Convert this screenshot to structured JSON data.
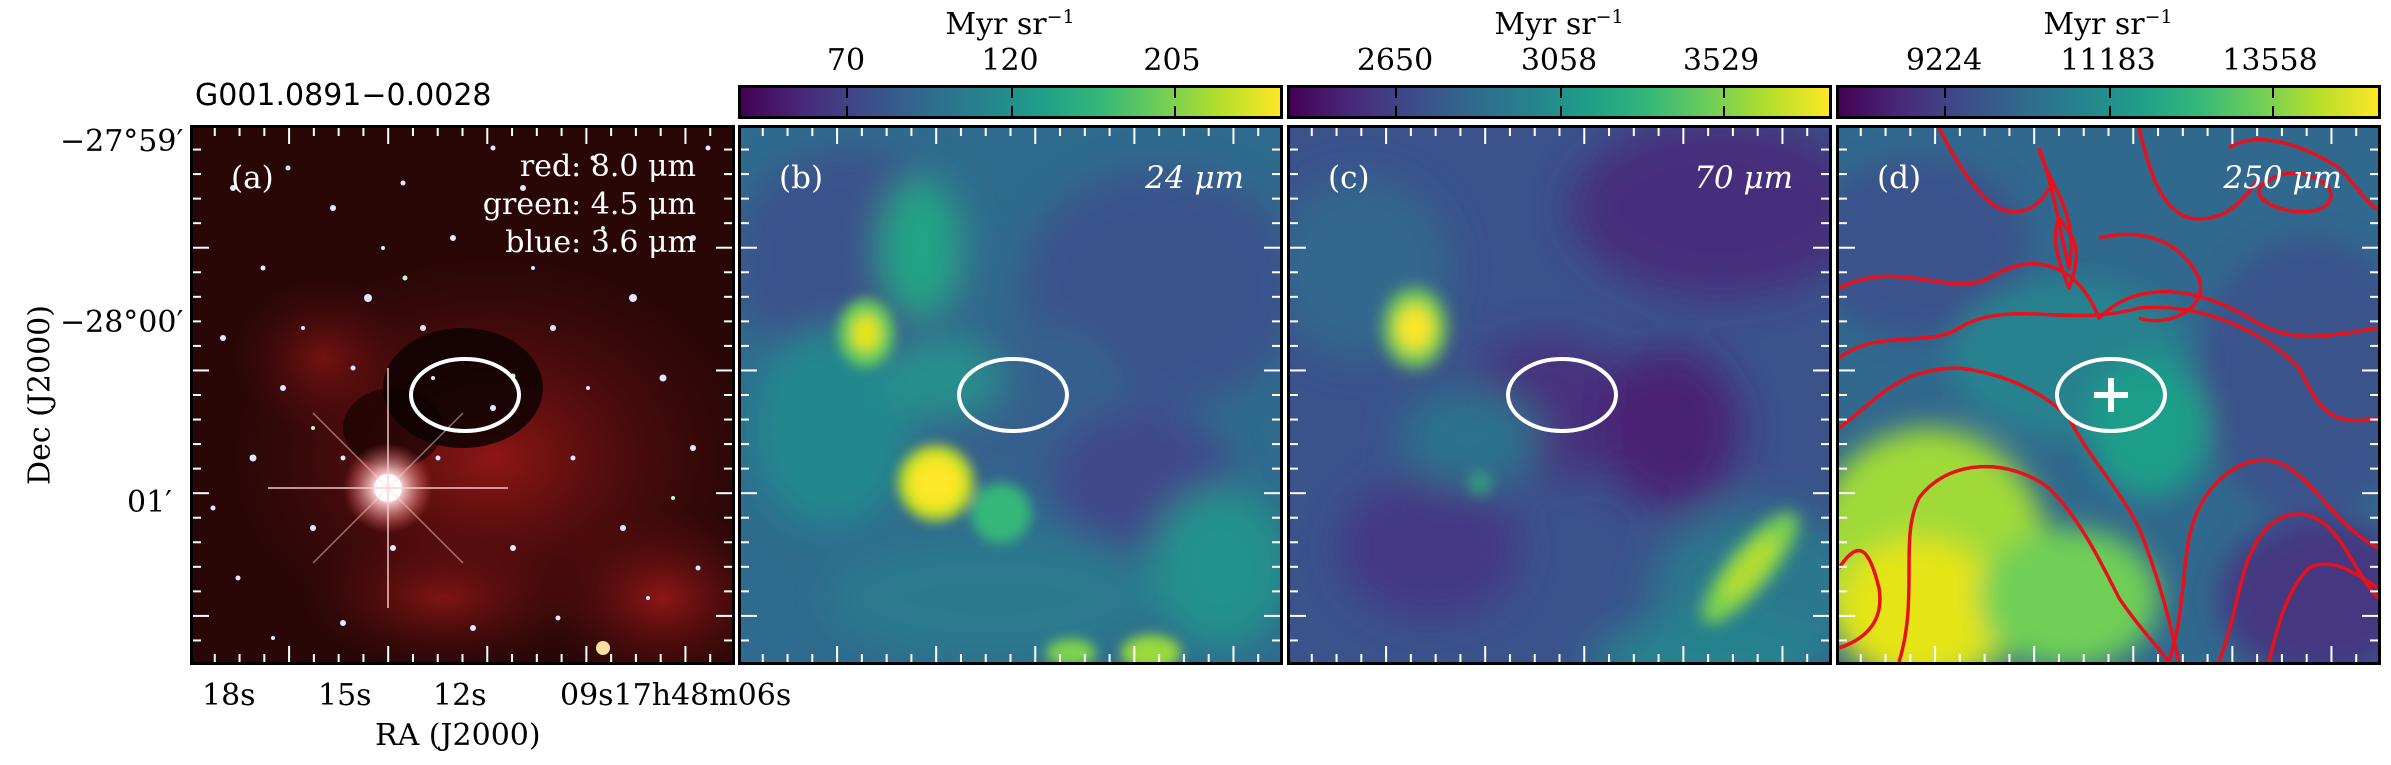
{
  "source_name": "G001.0891−0.0028",
  "colorbars": [
    {
      "unit": "Myr sr",
      "unit_exp": "−1",
      "ticks": [
        "70",
        "120",
        "205"
      ]
    },
    {
      "unit": "Myr sr",
      "unit_exp": "−1",
      "ticks": [
        "2650",
        "3058",
        "3529"
      ]
    },
    {
      "unit": "Myr sr",
      "unit_exp": "−1",
      "ticks": [
        "9224",
        "11183",
        "13558"
      ]
    }
  ],
  "panels": [
    {
      "label": "(a)",
      "rgb": [
        "red: 8.0 μm",
        "green: 4.5 μm",
        "blue: 3.6 μm"
      ]
    },
    {
      "label": "(b)",
      "band": "24 μm"
    },
    {
      "label": "(c)",
      "band": "70 μm"
    },
    {
      "label": "(d)",
      "band": "250 μm"
    }
  ],
  "axes": {
    "xlabel": "RA (J2000)",
    "ylabel": "Dec (J2000)",
    "xticks": [
      "18s",
      "15s",
      "12s",
      "09s17h48m06s"
    ],
    "yticks": [
      "−27°59′",
      "−28°00′",
      "01′"
    ]
  },
  "colors": {
    "ellipse": "#ffffff",
    "contour": "#e8101a",
    "colormap": "viridis"
  }
}
